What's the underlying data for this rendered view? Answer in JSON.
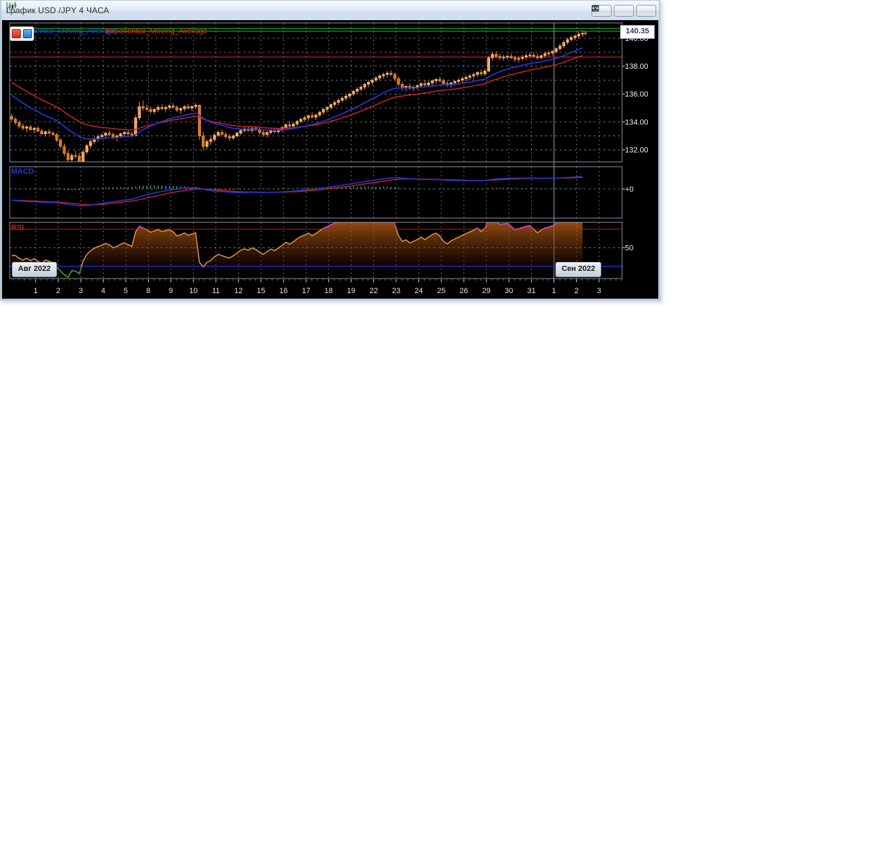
{
  "window": {
    "title": "График USD /JPY  4 ЧАСА",
    "icon": "candlestick-chart-icon",
    "controls": [
      "minimize",
      "maximize",
      "close"
    ]
  },
  "legend": {
    "ema_blue": "Exponential_Moving_Average",
    "ema_red": "Exponential_Moving_Average"
  },
  "panels": {
    "macd_label": "MACD",
    "rsi_label": "RSI"
  },
  "axis": {
    "current_price": "140.35",
    "price_ticks": [
      "140.00",
      "138.00",
      "136.00",
      "134.00",
      "132.00"
    ],
    "macd_tick": "+0",
    "rsi_tick": "50",
    "month_left": "Авг 2022",
    "month_right": "Сен 2022"
  },
  "colors": {
    "candle_up": "#f2a458",
    "candle_up_stroke": "#f8c58f",
    "candle_down": "#dd7419",
    "candle_down_stroke": "#ef9440",
    "wick": "#ef8c36",
    "ema_fast": "#2336d6",
    "ema_slow": "#d02020",
    "level_green": "#1db41d",
    "level_red": "#d01818",
    "macd_line": "#2336d6",
    "macd_signal": "#d02020",
    "macd_hist": "#5fe6d4",
    "rsi_line": "#e89140",
    "rsi_overbought": "#cc3fd0",
    "rsi_oversold": "#22aa22",
    "rsi_upper_line": "#d01818",
    "rsi_lower_line": "#2026d0",
    "grid": "#9aa5b0",
    "panel_border": "#8a95a0",
    "axis_text": "#efefef",
    "marker": "#ff8c28"
  },
  "chart_data": {
    "type": "candlestick",
    "symbol": "USD/JPY",
    "timeframe": "4 часа",
    "candles_per_day": 6,
    "lead_in_candles": 6,
    "day_labels": [
      "1",
      "2",
      "3",
      "4",
      "5",
      "8",
      "9",
      "10",
      "11",
      "12",
      "15",
      "16",
      "17",
      "18",
      "19",
      "22",
      "23",
      "24",
      "25",
      "26",
      "29",
      "30",
      "31",
      "1",
      "2",
      "3"
    ],
    "months": [
      "Авг 2022",
      "Сен 2022"
    ],
    "september_separator_after_label_index": 22,
    "price_axis": {
      "tick_values": [
        140,
        138,
        136,
        134,
        132
      ],
      "min": 131.1,
      "max": 141.05
    },
    "levels": {
      "green_lines": [
        140.7,
        140.5
      ],
      "red_resistance": 138.65
    },
    "indicator_panels": {
      "macd": {
        "zero_label": "+0"
      },
      "rsi": {
        "upper": 70,
        "mid": 50,
        "lower": 30
      }
    },
    "last_price": 140.35,
    "candles": [
      [
        134.4,
        134.6,
        134.05,
        134.2
      ],
      [
        134.2,
        134.35,
        133.8,
        133.95
      ],
      [
        133.95,
        134.1,
        133.55,
        133.7
      ],
      [
        133.7,
        133.9,
        133.4,
        133.55
      ],
      [
        133.55,
        133.75,
        133.25,
        133.65
      ],
      [
        133.65,
        133.8,
        133.35,
        133.45
      ],
      [
        133.45,
        133.65,
        133.2,
        133.55
      ],
      [
        133.55,
        133.7,
        133.25,
        133.35
      ],
      [
        133.35,
        133.5,
        133.05,
        133.15
      ],
      [
        133.15,
        133.4,
        132.95,
        133.3
      ],
      [
        133.3,
        133.5,
        133.1,
        133.2
      ],
      [
        133.2,
        133.35,
        133.0,
        133.1
      ],
      [
        133.1,
        133.2,
        132.55,
        132.7
      ],
      [
        132.7,
        132.85,
        132.1,
        132.25
      ],
      [
        132.25,
        132.45,
        131.55,
        131.75
      ],
      [
        131.75,
        131.95,
        131.05,
        131.3
      ],
      [
        131.3,
        131.75,
        130.95,
        131.6
      ],
      [
        131.6,
        131.95,
        131.4,
        131.55
      ],
      [
        131.55,
        131.8,
        130.9,
        131.15
      ],
      [
        131.15,
        132.0,
        130.95,
        131.85
      ],
      [
        131.85,
        132.45,
        131.7,
        132.3
      ],
      [
        132.3,
        132.75,
        132.1,
        132.6
      ],
      [
        132.6,
        132.95,
        132.4,
        132.8
      ],
      [
        132.8,
        133.1,
        132.6,
        132.95
      ],
      [
        132.95,
        133.2,
        132.8,
        133.05
      ],
      [
        133.05,
        133.3,
        132.9,
        133.2
      ],
      [
        133.2,
        133.4,
        133.0,
        133.1
      ],
      [
        133.1,
        133.25,
        132.75,
        132.9
      ],
      [
        132.9,
        133.1,
        132.6,
        133.0
      ],
      [
        133.0,
        133.25,
        132.85,
        133.15
      ],
      [
        133.15,
        133.35,
        132.95,
        133.25
      ],
      [
        133.25,
        133.45,
        133.05,
        133.15
      ],
      [
        133.15,
        133.3,
        132.9,
        133.05
      ],
      [
        133.05,
        134.5,
        132.95,
        134.3
      ],
      [
        134.3,
        135.45,
        134.1,
        135.1
      ],
      [
        135.1,
        135.55,
        134.8,
        135.0
      ],
      [
        135.0,
        135.25,
        134.75,
        134.9
      ],
      [
        134.9,
        135.1,
        134.6,
        134.75
      ],
      [
        134.75,
        135.0,
        134.55,
        134.9
      ],
      [
        134.9,
        135.2,
        134.7,
        135.05
      ],
      [
        135.05,
        135.3,
        134.85,
        134.95
      ],
      [
        134.95,
        135.15,
        134.7,
        135.05
      ],
      [
        135.05,
        135.3,
        134.85,
        135.15
      ],
      [
        135.15,
        135.35,
        134.95,
        135.05
      ],
      [
        135.05,
        135.2,
        134.7,
        134.85
      ],
      [
        134.85,
        135.05,
        134.6,
        134.95
      ],
      [
        134.95,
        135.2,
        134.75,
        135.1
      ],
      [
        135.1,
        135.3,
        134.9,
        135.0
      ],
      [
        135.0,
        135.2,
        134.8,
        135.1
      ],
      [
        135.1,
        135.35,
        134.95,
        135.2
      ],
      [
        135.2,
        135.25,
        132.7,
        133.0
      ],
      [
        133.0,
        133.3,
        131.95,
        132.25
      ],
      [
        132.25,
        132.75,
        132.05,
        132.6
      ],
      [
        132.6,
        132.95,
        132.35,
        132.75
      ],
      [
        132.75,
        133.2,
        132.6,
        133.05
      ],
      [
        133.05,
        133.4,
        132.9,
        133.25
      ],
      [
        133.25,
        133.45,
        132.95,
        133.1
      ],
      [
        133.1,
        133.3,
        132.8,
        132.95
      ],
      [
        132.95,
        133.15,
        132.65,
        132.85
      ],
      [
        132.85,
        133.1,
        132.7,
        133.0
      ],
      [
        133.0,
        133.3,
        132.9,
        133.2
      ],
      [
        133.2,
        133.5,
        133.05,
        133.4
      ],
      [
        133.4,
        133.65,
        133.25,
        133.5
      ],
      [
        133.5,
        133.7,
        133.3,
        133.4
      ],
      [
        133.4,
        133.6,
        133.2,
        133.55
      ],
      [
        133.55,
        133.7,
        133.35,
        133.45
      ],
      [
        133.45,
        133.6,
        133.1,
        133.25
      ],
      [
        133.25,
        133.4,
        132.95,
        133.1
      ],
      [
        133.1,
        133.35,
        132.9,
        133.25
      ],
      [
        133.25,
        133.5,
        133.1,
        133.4
      ],
      [
        133.4,
        133.6,
        133.2,
        133.3
      ],
      [
        133.3,
        133.55,
        133.15,
        133.45
      ],
      [
        133.45,
        133.7,
        133.3,
        133.6
      ],
      [
        133.6,
        133.9,
        133.45,
        133.8
      ],
      [
        133.8,
        134.05,
        133.6,
        133.7
      ],
      [
        133.7,
        133.95,
        133.55,
        133.85
      ],
      [
        133.85,
        134.15,
        133.7,
        134.05
      ],
      [
        134.05,
        134.3,
        133.9,
        134.2
      ],
      [
        134.2,
        134.45,
        134.0,
        134.3
      ],
      [
        134.3,
        134.55,
        134.1,
        134.45
      ],
      [
        134.45,
        134.7,
        134.25,
        134.35
      ],
      [
        134.35,
        134.6,
        134.15,
        134.5
      ],
      [
        134.5,
        134.8,
        134.35,
        134.7
      ],
      [
        134.7,
        135.0,
        134.5,
        134.9
      ],
      [
        134.9,
        135.15,
        134.7,
        135.05
      ],
      [
        135.05,
        135.35,
        134.9,
        135.25
      ],
      [
        135.25,
        135.55,
        135.1,
        135.4
      ],
      [
        135.4,
        135.7,
        135.2,
        135.55
      ],
      [
        135.55,
        135.85,
        135.4,
        135.7
      ],
      [
        135.7,
        136.0,
        135.5,
        135.85
      ],
      [
        135.85,
        136.1,
        135.65,
        136.0
      ],
      [
        136.0,
        136.3,
        135.85,
        136.2
      ],
      [
        136.2,
        136.5,
        136.0,
        136.35
      ],
      [
        136.35,
        136.65,
        136.2,
        136.5
      ],
      [
        136.5,
        136.8,
        136.3,
        136.7
      ],
      [
        136.7,
        137.0,
        136.5,
        136.85
      ],
      [
        136.85,
        137.1,
        136.65,
        137.0
      ],
      [
        137.0,
        137.3,
        136.85,
        137.15
      ],
      [
        137.15,
        137.45,
        137.0,
        137.3
      ],
      [
        137.3,
        137.55,
        137.1,
        137.4
      ],
      [
        137.4,
        137.65,
        137.2,
        137.5
      ],
      [
        137.5,
        137.7,
        137.3,
        137.4
      ],
      [
        137.4,
        137.55,
        136.95,
        137.1
      ],
      [
        137.1,
        137.25,
        136.55,
        136.7
      ],
      [
        136.7,
        136.85,
        136.25,
        136.45
      ],
      [
        136.45,
        136.65,
        136.2,
        136.55
      ],
      [
        136.55,
        136.75,
        136.3,
        136.4
      ],
      [
        136.4,
        136.6,
        136.2,
        136.5
      ],
      [
        136.5,
        136.7,
        136.3,
        136.6
      ],
      [
        136.6,
        136.85,
        136.45,
        136.75
      ],
      [
        136.75,
        137.0,
        136.55,
        136.65
      ],
      [
        136.65,
        136.9,
        136.5,
        136.8
      ],
      [
        136.8,
        137.05,
        136.6,
        136.95
      ],
      [
        136.95,
        137.15,
        136.75,
        137.05
      ],
      [
        137.05,
        137.25,
        136.85,
        136.95
      ],
      [
        136.95,
        137.1,
        136.65,
        136.75
      ],
      [
        136.75,
        136.95,
        136.5,
        136.65
      ],
      [
        136.65,
        136.9,
        136.45,
        136.8
      ],
      [
        136.8,
        137.0,
        136.6,
        136.9
      ],
      [
        136.9,
        137.15,
        136.7,
        137.0
      ],
      [
        137.0,
        137.25,
        136.8,
        137.1
      ],
      [
        137.1,
        137.35,
        136.9,
        137.2
      ],
      [
        137.2,
        137.45,
        137.0,
        137.3
      ],
      [
        137.3,
        137.55,
        137.1,
        137.4
      ],
      [
        137.4,
        137.65,
        137.2,
        137.55
      ],
      [
        137.55,
        137.75,
        137.3,
        137.45
      ],
      [
        137.45,
        137.8,
        137.3,
        137.65
      ],
      [
        137.65,
        138.75,
        137.55,
        138.6
      ],
      [
        138.6,
        139.0,
        138.4,
        138.85
      ],
      [
        138.85,
        139.05,
        138.55,
        138.7
      ],
      [
        138.7,
        138.9,
        138.45,
        138.6
      ],
      [
        138.6,
        138.8,
        138.4,
        138.65
      ],
      [
        138.65,
        138.85,
        138.45,
        138.7
      ],
      [
        138.7,
        138.9,
        138.5,
        138.6
      ],
      [
        138.6,
        138.75,
        138.3,
        138.5
      ],
      [
        138.5,
        138.7,
        138.25,
        138.55
      ],
      [
        138.55,
        138.8,
        138.4,
        138.65
      ],
      [
        138.65,
        138.9,
        138.45,
        138.75
      ],
      [
        138.75,
        138.95,
        138.55,
        138.8
      ],
      [
        138.8,
        139.0,
        138.6,
        138.7
      ],
      [
        138.7,
        138.9,
        138.45,
        138.6
      ],
      [
        138.6,
        138.85,
        138.5,
        138.75
      ],
      [
        138.75,
        139.05,
        138.6,
        138.9
      ],
      [
        138.9,
        139.1,
        138.7,
        138.95
      ],
      [
        138.95,
        139.15,
        138.75,
        139.05
      ],
      [
        139.05,
        139.35,
        138.9,
        139.25
      ],
      [
        139.25,
        139.6,
        139.1,
        139.45
      ],
      [
        139.45,
        139.85,
        139.3,
        139.7
      ],
      [
        139.7,
        140.05,
        139.55,
        139.9
      ],
      [
        139.9,
        140.2,
        139.75,
        140.05
      ],
      [
        140.05,
        140.3,
        139.85,
        140.15
      ],
      [
        140.15,
        140.45,
        139.95,
        140.3
      ],
      [
        140.3,
        140.55,
        140.1,
        140.35
      ]
    ]
  }
}
